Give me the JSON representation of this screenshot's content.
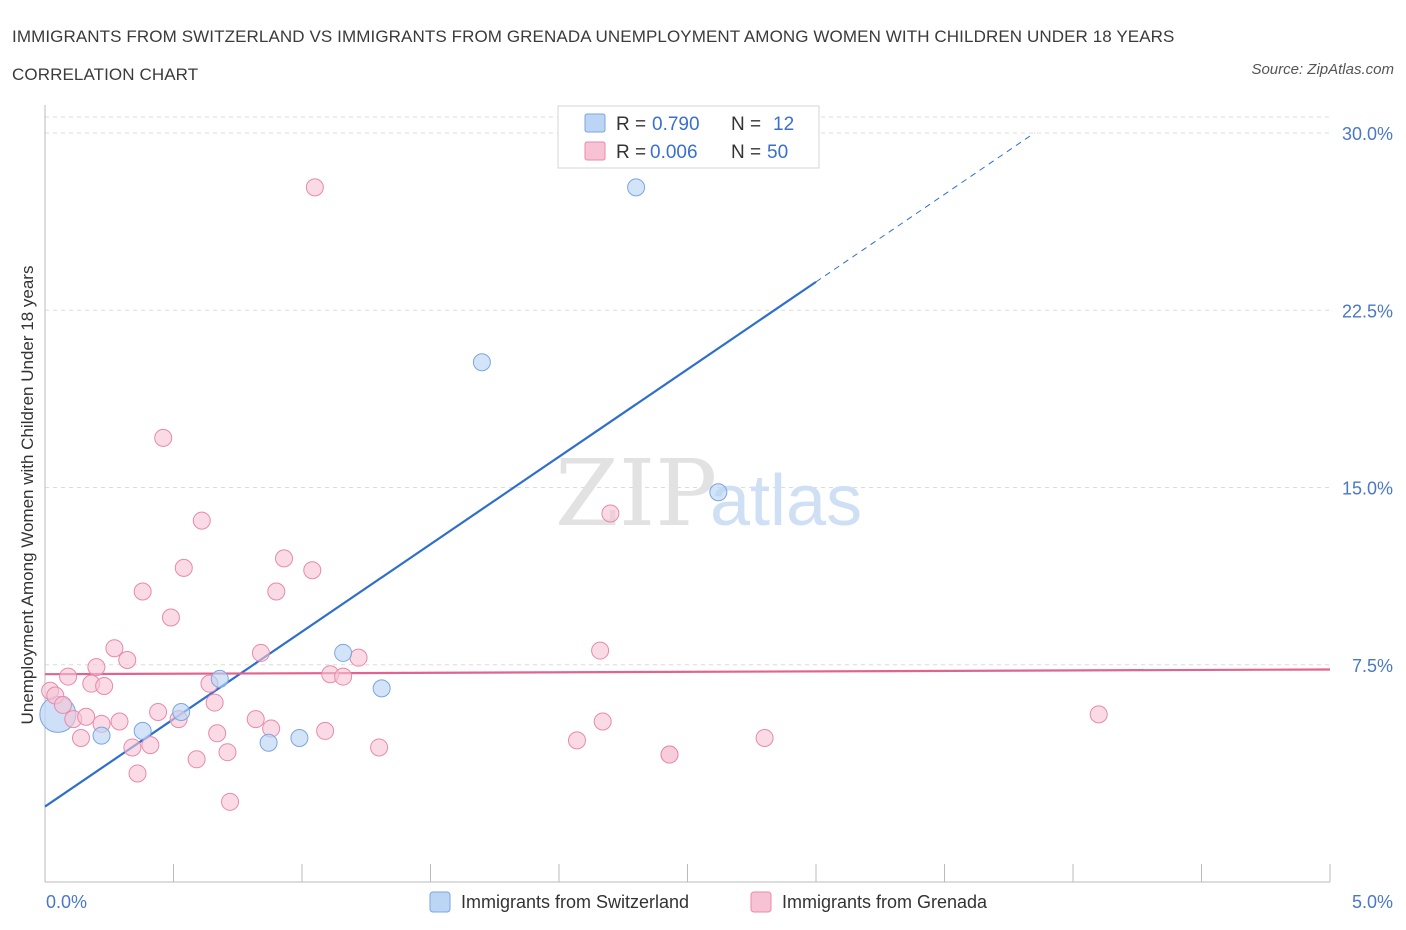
{
  "title": "IMMIGRANTS FROM SWITZERLAND VS IMMIGRANTS FROM GRENADA UNEMPLOYMENT AMONG WOMEN WITH CHILDREN UNDER 18 YEARS CORRELATION CHART",
  "source": "Source: ZipAtlas.com",
  "watermark": {
    "zip": "ZIP",
    "atlas": "atlas"
  },
  "legend": {
    "rows": [
      {
        "r_label": "R = ",
        "r_value": "0.790",
        "n_label": "N = ",
        "n_value": "12"
      },
      {
        "r_label": "R = ",
        "r_value": "0.006",
        "n_label": "N = ",
        "n_value": "50"
      }
    ]
  },
  "colors": {
    "switzerland_fill": "#bcd5f5",
    "switzerland_stroke": "#7aa6e0",
    "switzerland_line": "#2f6fcc",
    "grenada_fill": "#f7c3d4",
    "grenada_stroke": "#e88aaa",
    "grenada_line": "#e0648f",
    "tick_text": "#4a78c7",
    "grid": "#dcdcdc"
  },
  "chart_data": {
    "type": "scatter",
    "xlabel": "",
    "ylabel": "Unemployment Among Women with Children Under 18 years",
    "xlim": [
      0,
      5
    ],
    "ylim": [
      0,
      30
    ],
    "x_tick_labels": [
      "0.0%",
      "5.0%"
    ],
    "y_ticks": [
      7.5,
      15.0,
      22.5,
      30.0
    ],
    "y_tick_labels": [
      "7.5%",
      "15.0%",
      "22.5%",
      "30.0%"
    ],
    "grid": "horizontal dashed",
    "legend_position": "top-center",
    "series": [
      {
        "name": "Immigrants from Switzerland",
        "points": [
          [
            0.05,
            5.4
          ],
          [
            0.22,
            4.5
          ],
          [
            0.38,
            4.7
          ],
          [
            0.53,
            5.5
          ],
          [
            0.68,
            6.9
          ],
          [
            0.87,
            4.2
          ],
          [
            0.99,
            4.4
          ],
          [
            1.16,
            8.0
          ],
          [
            1.31,
            6.5
          ],
          [
            1.7,
            20.3
          ],
          [
            2.3,
            27.7
          ],
          [
            2.62,
            14.8
          ]
        ],
        "trend": {
          "x": [
            0.0,
            3.0
          ],
          "y": [
            1.5,
            23.7
          ],
          "dashed_to": [
            3.85,
            30.0
          ]
        }
      },
      {
        "name": "Immigrants from Grenada",
        "points": [
          [
            0.02,
            6.4
          ],
          [
            0.04,
            6.2
          ],
          [
            0.07,
            5.8
          ],
          [
            0.09,
            7.0
          ],
          [
            0.11,
            5.2
          ],
          [
            0.14,
            4.4
          ],
          [
            0.16,
            5.3
          ],
          [
            0.18,
            6.7
          ],
          [
            0.2,
            7.4
          ],
          [
            0.22,
            5.0
          ],
          [
            0.23,
            6.6
          ],
          [
            0.27,
            8.2
          ],
          [
            0.29,
            5.1
          ],
          [
            0.32,
            7.7
          ],
          [
            0.34,
            4.0
          ],
          [
            0.36,
            2.9
          ],
          [
            0.38,
            10.6
          ],
          [
            0.41,
            4.1
          ],
          [
            0.44,
            5.5
          ],
          [
            0.46,
            17.1
          ],
          [
            0.49,
            9.5
          ],
          [
            0.52,
            5.2
          ],
          [
            0.54,
            11.6
          ],
          [
            0.59,
            3.5
          ],
          [
            0.61,
            13.6
          ],
          [
            0.64,
            6.7
          ],
          [
            0.66,
            5.9
          ],
          [
            0.67,
            4.6
          ],
          [
            0.71,
            3.8
          ],
          [
            0.72,
            1.7
          ],
          [
            0.82,
            5.2
          ],
          [
            0.84,
            8.0
          ],
          [
            0.88,
            4.8
          ],
          [
            0.9,
            10.6
          ],
          [
            0.93,
            12.0
          ],
          [
            1.04,
            11.5
          ],
          [
            1.09,
            4.7
          ],
          [
            1.11,
            7.1
          ],
          [
            1.16,
            7.0
          ],
          [
            1.22,
            7.8
          ],
          [
            1.3,
            4.0
          ],
          [
            1.05,
            27.7
          ],
          [
            2.07,
            4.3
          ],
          [
            2.17,
            5.1
          ],
          [
            2.2,
            13.9
          ],
          [
            2.16,
            8.1
          ],
          [
            2.43,
            3.7
          ],
          [
            2.43,
            3.7
          ],
          [
            2.8,
            4.4
          ],
          [
            4.1,
            5.4
          ]
        ],
        "trend": {
          "x": [
            0.0,
            5.0
          ],
          "y": [
            7.1,
            7.3
          ]
        }
      }
    ]
  },
  "bottom_legend": [
    {
      "label": "Immigrants from Switzerland"
    },
    {
      "label": "Immigrants from Grenada"
    }
  ]
}
